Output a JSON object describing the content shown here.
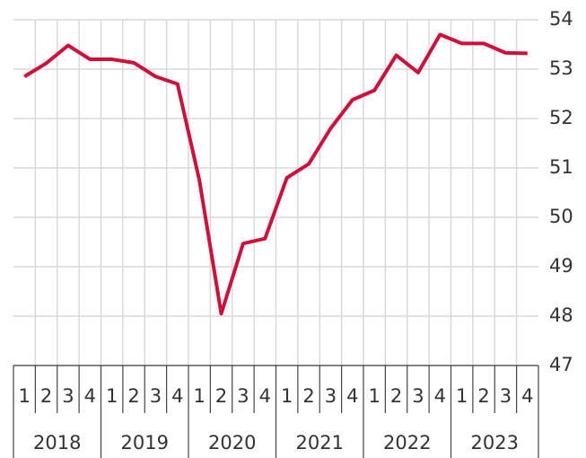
{
  "chart_data": {
    "type": "line",
    "categories": [
      "1",
      "2",
      "3",
      "4",
      "1",
      "2",
      "3",
      "4",
      "1",
      "2",
      "3",
      "4",
      "1",
      "2",
      "3",
      "4",
      "1",
      "2",
      "3",
      "4",
      "1",
      "2",
      "3",
      "4"
    ],
    "x_groups": [
      "2018",
      "2019",
      "2020",
      "2021",
      "2022",
      "2023"
    ],
    "series": [
      {
        "color": "#d0103a",
        "values": [
          52.85,
          53.12,
          53.48,
          53.2,
          53.2,
          53.13,
          52.85,
          52.7,
          50.75,
          48.05,
          49.47,
          49.57,
          50.8,
          51.08,
          51.8,
          52.38,
          52.57,
          53.28,
          52.93,
          53.7,
          53.52,
          53.52,
          53.33,
          53.32
        ]
      }
    ],
    "ylim": [
      47,
      54
    ],
    "yticks": [
      47,
      48,
      49,
      50,
      51,
      52,
      53,
      54
    ],
    "grid": true
  }
}
